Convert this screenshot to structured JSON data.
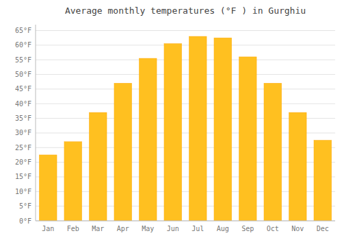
{
  "chart_data": {
    "type": "bar",
    "title": "Average monthly temperatures (°F ) in Gurghiu",
    "categories": [
      "Jan",
      "Feb",
      "Mar",
      "Apr",
      "May",
      "Jun",
      "Jul",
      "Aug",
      "Sep",
      "Oct",
      "Nov",
      "Dec"
    ],
    "values": [
      22.5,
      27.0,
      37.0,
      47.0,
      55.5,
      60.5,
      63.0,
      62.5,
      56.0,
      47.0,
      37.0,
      27.5
    ],
    "color": "#FFC020",
    "ylim": [
      0,
      67
    ],
    "yticks": [
      {
        "value": 0,
        "label": "0°F"
      },
      {
        "value": 5,
        "label": "5°F"
      },
      {
        "value": 10,
        "label": "10°F"
      },
      {
        "value": 15,
        "label": "15°F"
      },
      {
        "value": 20,
        "label": "20°F"
      },
      {
        "value": 25,
        "label": "25°F"
      },
      {
        "value": 30,
        "label": "30°F"
      },
      {
        "value": 35,
        "label": "35°F"
      },
      {
        "value": 40,
        "label": "40°F"
      },
      {
        "value": 45,
        "label": "45°F"
      },
      {
        "value": 50,
        "label": "50°F"
      },
      {
        "value": 55,
        "label": "55°F"
      },
      {
        "value": 60,
        "label": "60°F"
      },
      {
        "value": 65,
        "label": "65°F"
      }
    ],
    "grid": true
  }
}
